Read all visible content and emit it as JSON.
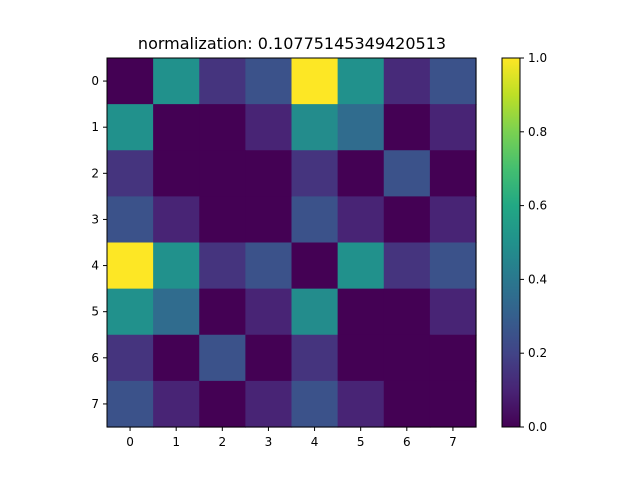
{
  "chart_data": {
    "type": "heatmap",
    "title": "normalization:  0.10775145349420513",
    "xlabel": "",
    "ylabel": "",
    "x_tick_labels": [
      "0",
      "1",
      "2",
      "3",
      "4",
      "5",
      "6",
      "7"
    ],
    "y_tick_labels": [
      "0",
      "1",
      "2",
      "3",
      "4",
      "5",
      "6",
      "7"
    ],
    "values": [
      [
        0.0,
        0.5,
        0.15,
        0.25,
        1.0,
        0.5,
        0.12,
        0.25
      ],
      [
        0.5,
        0.0,
        0.0,
        0.1,
        0.48,
        0.35,
        0.0,
        0.1
      ],
      [
        0.15,
        0.0,
        0.0,
        0.0,
        0.15,
        0.0,
        0.25,
        0.0
      ],
      [
        0.25,
        0.1,
        0.0,
        0.0,
        0.25,
        0.1,
        0.0,
        0.1
      ],
      [
        1.0,
        0.5,
        0.15,
        0.25,
        0.0,
        0.5,
        0.15,
        0.25
      ],
      [
        0.5,
        0.35,
        0.0,
        0.1,
        0.48,
        0.0,
        0.0,
        0.1
      ],
      [
        0.15,
        0.0,
        0.25,
        0.0,
        0.15,
        0.0,
        0.0,
        0.0
      ],
      [
        0.25,
        0.1,
        0.0,
        0.1,
        0.25,
        0.1,
        0.0,
        0.0
      ]
    ],
    "colorbar": {
      "colormap": "viridis",
      "range": [
        0.0,
        1.0
      ],
      "tick_values": [
        0.0,
        0.2,
        0.4,
        0.6,
        0.8,
        1.0
      ],
      "tick_labels": [
        "0.0",
        "0.2",
        "0.4",
        "0.6",
        "0.8",
        "1.0"
      ]
    },
    "grid": false
  }
}
